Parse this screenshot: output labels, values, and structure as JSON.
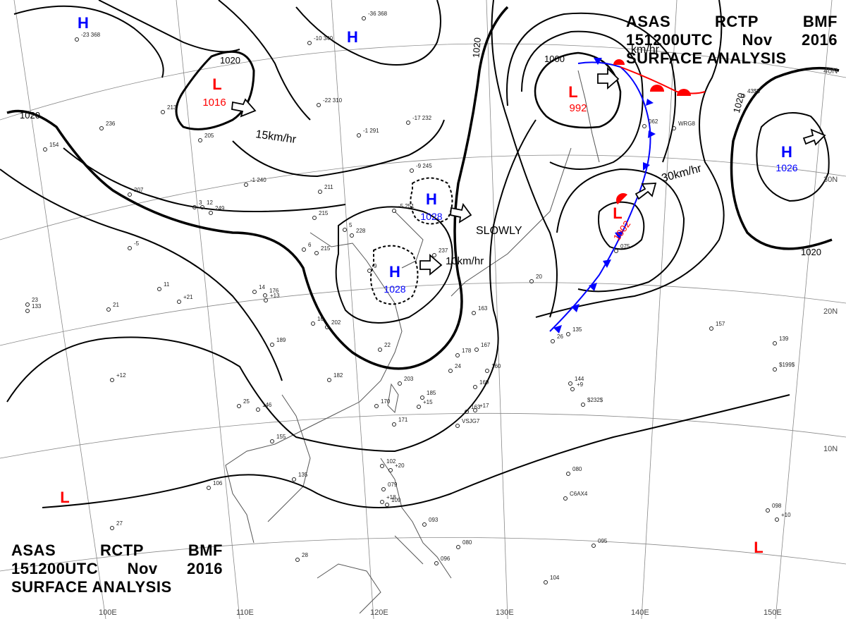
{
  "header": {
    "line1": [
      "ASAS",
      "RCTP",
      "BMF"
    ],
    "line2": [
      "151200UTC",
      "Nov",
      "2016"
    ],
    "line3": "SURFACE ANALYSIS"
  },
  "colors": {
    "high": "#0000ff",
    "low": "#ff0000",
    "isobar": "#000000",
    "grid": "#888888",
    "coast": "#555555"
  },
  "pressure_systems": [
    {
      "type": "H",
      "label": "H"
    },
    {
      "type": "H",
      "label": "H"
    },
    {
      "type": "H",
      "label": "H",
      "value": "1028"
    },
    {
      "type": "H",
      "label": "H",
      "value": "1028"
    },
    {
      "type": "H",
      "label": "H",
      "value": "1026"
    },
    {
      "type": "L",
      "label": "L",
      "value": "1016"
    },
    {
      "type": "L",
      "label": "L",
      "value": "992"
    },
    {
      "type": "L",
      "label": "L",
      "value": "1002"
    },
    {
      "type": "L",
      "label": "L"
    },
    {
      "type": "L",
      "label": "L"
    }
  ],
  "isobar_labels": [
    "1020",
    "1020",
    "1020",
    "1000",
    "1020",
    "1020"
  ],
  "motion_labels": [
    "15km/hr",
    "SLOWLY",
    "10km/hr",
    "30km/hr",
    "km/hr"
  ],
  "latitude_labels": [
    "40N",
    "30N",
    "20N",
    "10N"
  ],
  "longitude_labels": [
    "100E",
    "110E",
    "120E",
    "130E",
    "140E",
    "150E"
  ],
  "station_plots": [
    "-23 368",
    "-36 368",
    "-10 340",
    "-22 310",
    "-17 232",
    "-1 291",
    "-9 245",
    "-5 251",
    "-1 240",
    "211",
    "215",
    "228",
    "215",
    "176",
    "202",
    "189",
    "182",
    "203",
    "185",
    "170",
    "171",
    "146",
    "155",
    "135",
    "106",
    "102",
    "079",
    "109",
    "093",
    "080",
    "095",
    "104",
    "098",
    "080",
    "144",
    "135",
    "139",
    "157",
    "096",
    "075",
    "062",
    "236",
    "154",
    "207",
    "249",
    "213",
    "205",
    "237",
    "163",
    "167",
    "169",
    "178",
    "160",
    "163",
    "133",
    "21",
    "11",
    "-5",
    "28",
    "27",
    "26",
    "25",
    "24",
    "23",
    "22",
    "20",
    "16",
    "14",
    "12",
    "9",
    "6",
    "5",
    "3",
    "+12",
    "+13",
    "+15",
    "+17",
    "+18",
    "+20",
    "+21",
    "+10",
    "+9",
    "VSJG7",
    "C6AX4",
    "$232$",
    "$199$",
    "43$$",
    "WRG8"
  ]
}
